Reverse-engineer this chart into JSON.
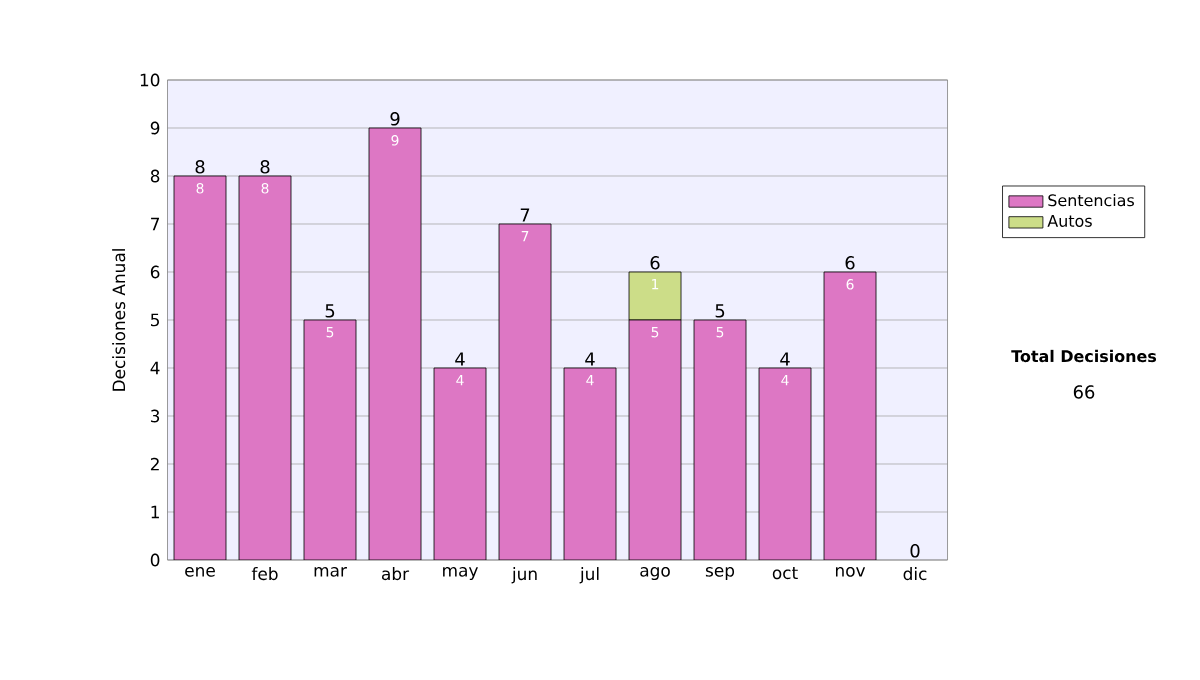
{
  "chart_data": {
    "type": "bar",
    "stacked": true,
    "categories": [
      "ene",
      "feb",
      "mar",
      "abr",
      "may",
      "jun",
      "jul",
      "ago",
      "sep",
      "oct",
      "nov",
      "dic"
    ],
    "series": [
      {
        "name": "Sentencias",
        "color": "#dd77c4",
        "values": [
          8,
          8,
          5,
          9,
          4,
          7,
          4,
          5,
          5,
          4,
          6,
          0
        ],
        "value_labels": [
          "8",
          "8",
          "5",
          "9",
          "4",
          "7",
          "4",
          "5",
          "5",
          "4",
          "6",
          null
        ]
      },
      {
        "name": "Autos",
        "color": "#ccdd88",
        "values": [
          0,
          0,
          0,
          0,
          0,
          0,
          0,
          1,
          0,
          0,
          0,
          0
        ],
        "value_labels": [
          null,
          null,
          null,
          null,
          null,
          null,
          null,
          "1",
          null,
          null,
          null,
          null
        ]
      }
    ],
    "totals": [
      "8",
      "8",
      "5",
      "9",
      "4",
      "7",
      "4",
      "6",
      "5",
      "4",
      "6",
      "0"
    ],
    "ylabel": "Decisiones Anual",
    "ylim": [
      0,
      10
    ],
    "yticks": [
      0,
      1,
      2,
      3,
      4,
      5,
      6,
      7,
      8,
      9,
      10
    ],
    "grid": "y",
    "legend": "right",
    "annotations": [
      "Total Decisiones",
      "66"
    ]
  }
}
